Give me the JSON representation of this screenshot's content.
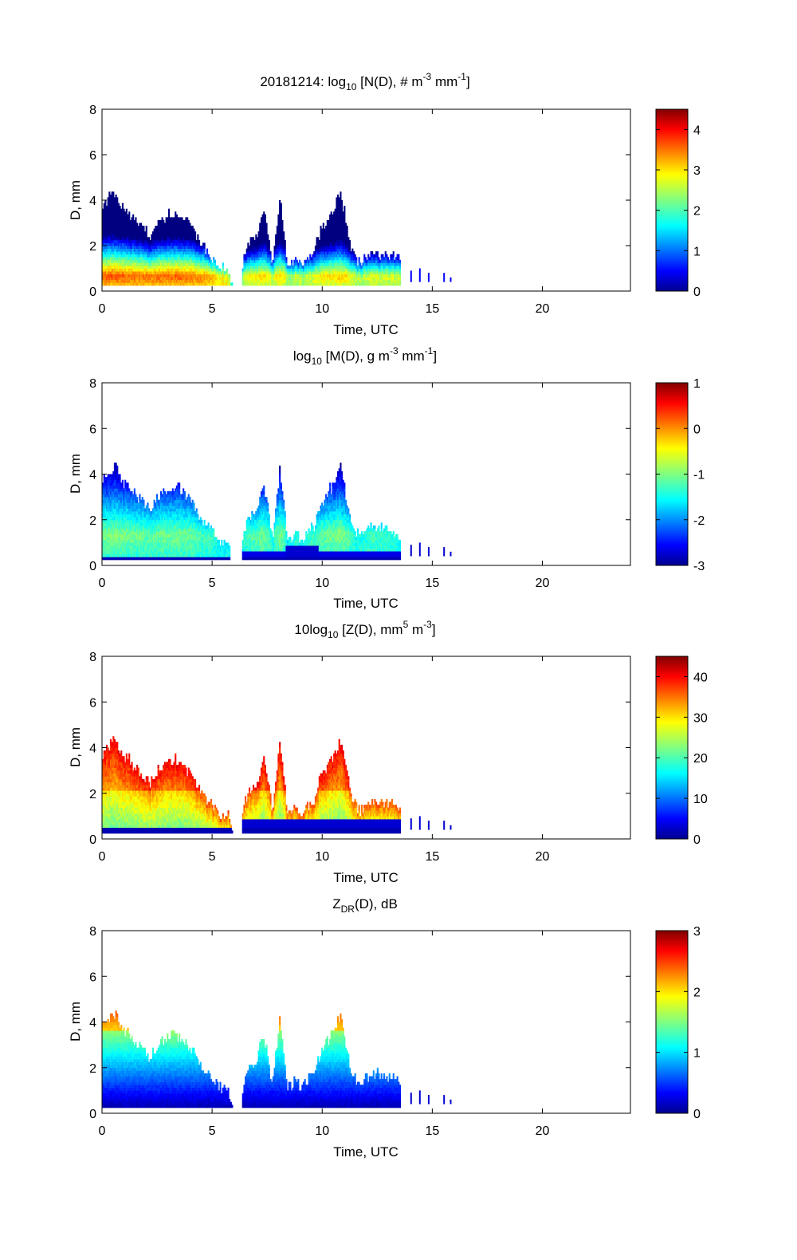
{
  "figure_title": "20181214",
  "chart_data": [
    {
      "type": "heatmap",
      "title": {
        "prefix": "20181214: log",
        "sub": "10",
        "main": " [N(D), # m",
        "sup1": "-3",
        "mid": " mm",
        "sup2": "-1",
        "end": "]"
      },
      "xlabel": "Time, UTC",
      "ylabel": "D, mm",
      "xlim": [
        0,
        24
      ],
      "ylim": [
        0,
        8
      ],
      "xticks": [
        0,
        5,
        10,
        15,
        20
      ],
      "yticks": [
        0,
        2,
        4,
        6,
        8
      ],
      "colorbar": {
        "min": 0,
        "max": 4.5,
        "ticks": [
          0,
          1,
          2,
          3,
          4
        ]
      },
      "field": "number_concentration"
    },
    {
      "type": "heatmap",
      "title": {
        "prefix": "log",
        "sub": "10",
        "main": " [M(D), g m",
        "sup1": "-3",
        "mid": " mm",
        "sup2": "-1",
        "end": "]"
      },
      "xlabel": "Time, UTC",
      "ylabel": "D, mm",
      "xlim": [
        0,
        24
      ],
      "ylim": [
        0,
        8
      ],
      "xticks": [
        0,
        5,
        10,
        15,
        20
      ],
      "yticks": [
        0,
        2,
        4,
        6,
        8
      ],
      "colorbar": {
        "min": -3,
        "max": 1,
        "ticks": [
          -3,
          -2,
          -1,
          0,
          1
        ]
      },
      "field": "mass"
    },
    {
      "type": "heatmap",
      "title": {
        "prefix": "10log",
        "sub": "10",
        "main": " [Z(D),  mm",
        "sup1": "5",
        "mid": " m",
        "sup2": "-3",
        "end": "]"
      },
      "xlabel": "Time, UTC",
      "ylabel": "D, mm",
      "xlim": [
        0,
        24
      ],
      "ylim": [
        0,
        8
      ],
      "xticks": [
        0,
        5,
        10,
        15,
        20
      ],
      "yticks": [
        0,
        2,
        4,
        6,
        8
      ],
      "colorbar": {
        "min": 0,
        "max": 45,
        "ticks": [
          0,
          10,
          20,
          30,
          40
        ]
      },
      "field": "reflectivity"
    },
    {
      "type": "heatmap",
      "title": {
        "prefix": "Z",
        "sub": "DR",
        "main": "(D), dB",
        "sup1": "",
        "mid": "",
        "sup2": "",
        "end": ""
      },
      "xlabel": "Time, UTC",
      "ylabel": "D, mm",
      "xlim": [
        0,
        24
      ],
      "ylim": [
        0,
        8
      ],
      "xticks": [
        0,
        5,
        10,
        15,
        20
      ],
      "yticks": [
        0,
        2,
        4,
        6,
        8
      ],
      "colorbar": {
        "min": 0,
        "max": 3,
        "ticks": [
          0,
          1,
          2,
          3
        ]
      },
      "field": "zdr"
    }
  ],
  "precip_envelope": {
    "description_units": "time in hours UTC, max diameter in mm",
    "points": [
      [
        0.0,
        3.7
      ],
      [
        0.3,
        4.1
      ],
      [
        0.6,
        4.3
      ],
      [
        0.9,
        3.6
      ],
      [
        1.2,
        3.4
      ],
      [
        1.5,
        3.0
      ],
      [
        1.8,
        2.8
      ],
      [
        2.1,
        2.4
      ],
      [
        2.4,
        2.8
      ],
      [
        2.7,
        3.1
      ],
      [
        3.0,
        3.3
      ],
      [
        3.3,
        3.4
      ],
      [
        3.6,
        3.2
      ],
      [
        3.9,
        2.9
      ],
      [
        4.2,
        2.5
      ],
      [
        4.5,
        2.0
      ],
      [
        4.8,
        1.6
      ],
      [
        5.1,
        1.3
      ],
      [
        5.4,
        1.0
      ],
      [
        5.7,
        0.9
      ],
      [
        5.9,
        0.0
      ],
      [
        6.3,
        0.0
      ],
      [
        6.4,
        1.4
      ],
      [
        6.7,
        2.1
      ],
      [
        7.0,
        2.3
      ],
      [
        7.3,
        3.4
      ],
      [
        7.5,
        2.6
      ],
      [
        7.7,
        1.0
      ],
      [
        7.9,
        2.9
      ],
      [
        8.05,
        4.1
      ],
      [
        8.2,
        2.9
      ],
      [
        8.4,
        1.0
      ],
      [
        8.7,
        1.3
      ],
      [
        9.0,
        1.1
      ],
      [
        9.3,
        1.4
      ],
      [
        9.6,
        1.7
      ],
      [
        9.9,
        2.6
      ],
      [
        10.2,
        3.1
      ],
      [
        10.5,
        3.5
      ],
      [
        10.8,
        4.3
      ],
      [
        11.0,
        3.3
      ],
      [
        11.3,
        1.6
      ],
      [
        11.7,
        1.2
      ],
      [
        12.0,
        1.5
      ],
      [
        12.4,
        1.7
      ],
      [
        12.8,
        1.5
      ],
      [
        13.2,
        1.5
      ],
      [
        13.5,
        1.2
      ],
      [
        13.55,
        0.0
      ]
    ],
    "scatter": [
      [
        14.0,
        0.9
      ],
      [
        14.4,
        1.0
      ],
      [
        14.8,
        0.8
      ],
      [
        15.5,
        0.8
      ],
      [
        15.8,
        0.6
      ]
    ]
  }
}
